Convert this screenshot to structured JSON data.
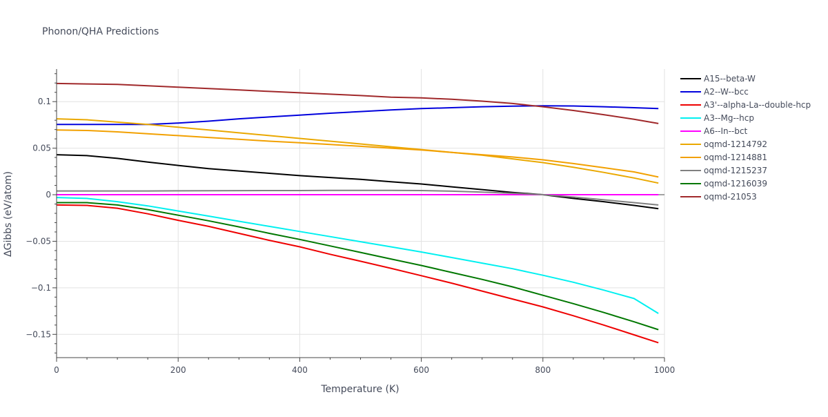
{
  "chart_data": {
    "type": "line",
    "title": "Phonon/QHA Predictions",
    "xlabel": "Temperature (K)",
    "ylabel": "ΔGibbs (eV/atom)",
    "xlim": [
      0,
      1000
    ],
    "ylim": [
      -0.175,
      0.135
    ],
    "xticks": [
      0,
      200,
      400,
      600,
      800,
      1000
    ],
    "xtick_labels": [
      "0",
      "200",
      "400",
      "600",
      "800",
      "1000"
    ],
    "yticks": [
      -0.15,
      -0.1,
      -0.05,
      0,
      0.05,
      0.1
    ],
    "ytick_labels": [
      "−0.15",
      "−0.1",
      "−0.05",
      "0",
      "0.05",
      "0.1"
    ],
    "grid": true,
    "legend_position": "right",
    "series": [
      {
        "name": "A15--beta-W",
        "color": "#000000",
        "x": [
          0,
          50,
          100,
          150,
          200,
          250,
          300,
          350,
          400,
          450,
          500,
          550,
          600,
          650,
          700,
          750,
          800,
          850,
          900,
          950,
          990
        ],
        "y": [
          0.043,
          0.042,
          0.039,
          0.035,
          0.0315,
          0.028,
          0.0255,
          0.023,
          0.0205,
          0.0185,
          0.0165,
          0.014,
          0.0115,
          0.0085,
          0.0055,
          0.0025,
          0.0,
          -0.004,
          -0.0075,
          -0.0115,
          -0.015
        ]
      },
      {
        "name": "A2--W--bcc",
        "color": "#0000dd",
        "x": [
          0,
          50,
          100,
          150,
          200,
          250,
          300,
          350,
          400,
          450,
          500,
          550,
          600,
          650,
          700,
          750,
          800,
          850,
          900,
          950,
          990
        ],
        "y": [
          0.0755,
          0.0755,
          0.0755,
          0.0755,
          0.077,
          0.079,
          0.0815,
          0.0835,
          0.0855,
          0.0875,
          0.0893,
          0.091,
          0.0925,
          0.0935,
          0.0945,
          0.0952,
          0.0955,
          0.0953,
          0.0945,
          0.0935,
          0.0925
        ]
      },
      {
        "name": "A3'--alpha-La--double-hcp",
        "color": "#ee0000",
        "x": [
          0,
          50,
          100,
          150,
          200,
          250,
          300,
          350,
          400,
          450,
          500,
          550,
          600,
          650,
          700,
          750,
          800,
          850,
          900,
          950,
          990
        ],
        "y": [
          -0.011,
          -0.0115,
          -0.0145,
          -0.0205,
          -0.0275,
          -0.034,
          -0.0415,
          -0.049,
          -0.056,
          -0.064,
          -0.0715,
          -0.079,
          -0.087,
          -0.095,
          -0.1035,
          -0.112,
          -0.1205,
          -0.13,
          -0.14,
          -0.1505,
          -0.159
        ]
      },
      {
        "name": "A3--Mg--hcp",
        "color": "#00f0f0",
        "x": [
          0,
          50,
          100,
          150,
          200,
          250,
          300,
          350,
          400,
          450,
          500,
          550,
          600,
          650,
          700,
          750,
          800,
          850,
          900,
          950,
          990
        ],
        "y": [
          -0.003,
          -0.004,
          -0.0075,
          -0.012,
          -0.0175,
          -0.023,
          -0.0285,
          -0.034,
          -0.0395,
          -0.045,
          -0.0505,
          -0.056,
          -0.0615,
          -0.0675,
          -0.0735,
          -0.0795,
          -0.0865,
          -0.094,
          -0.1025,
          -0.1115,
          -0.1275
        ]
      },
      {
        "name": "A6--In--bct",
        "color": "#ff00ff",
        "x": [
          0,
          990
        ],
        "y": [
          0.0,
          0.0
        ]
      },
      {
        "name": "oqmd-1214792",
        "color": "#eaa800",
        "x": [
          0,
          50,
          100,
          150,
          200,
          250,
          300,
          350,
          400,
          450,
          500,
          550,
          600,
          650,
          700,
          750,
          800,
          850,
          900,
          950,
          990
        ],
        "y": [
          0.0815,
          0.0805,
          0.078,
          0.0755,
          0.0725,
          0.0695,
          0.0665,
          0.0635,
          0.0605,
          0.0575,
          0.0545,
          0.0515,
          0.0485,
          0.0455,
          0.0425,
          0.0385,
          0.0345,
          0.0295,
          0.024,
          0.018,
          0.0125
        ]
      },
      {
        "name": "oqmd-1214881",
        "color": "#f2a000",
        "x": [
          0,
          50,
          100,
          150,
          200,
          250,
          300,
          350,
          400,
          450,
          500,
          550,
          600,
          650,
          700,
          750,
          800,
          850,
          900,
          950,
          990
        ],
        "y": [
          0.0695,
          0.069,
          0.0675,
          0.0655,
          0.0635,
          0.0615,
          0.0595,
          0.0575,
          0.0558,
          0.054,
          0.052,
          0.05,
          0.048,
          0.0455,
          0.043,
          0.0405,
          0.0375,
          0.0335,
          0.029,
          0.0245,
          0.019
        ]
      },
      {
        "name": "oqmd-1215237",
        "color": "#808080",
        "x": [
          0,
          50,
          100,
          150,
          200,
          250,
          300,
          350,
          400,
          450,
          500,
          550,
          600,
          650,
          700,
          750,
          800,
          850,
          900,
          950,
          990
        ],
        "y": [
          0.004,
          0.004,
          0.004,
          0.004,
          0.0042,
          0.0043,
          0.0044,
          0.0045,
          0.0045,
          0.0046,
          0.0047,
          0.0047,
          0.0045,
          0.0038,
          0.0028,
          0.0015,
          0.0,
          -0.0025,
          -0.0055,
          -0.0085,
          -0.011
        ]
      },
      {
        "name": "oqmd-1216039",
        "color": "#007700",
        "x": [
          0,
          50,
          100,
          150,
          200,
          250,
          300,
          350,
          400,
          450,
          500,
          550,
          600,
          650,
          700,
          750,
          800,
          850,
          900,
          950,
          990
        ],
        "y": [
          -0.0085,
          -0.0085,
          -0.011,
          -0.016,
          -0.022,
          -0.028,
          -0.0345,
          -0.0415,
          -0.048,
          -0.055,
          -0.062,
          -0.069,
          -0.076,
          -0.0835,
          -0.091,
          -0.099,
          -0.108,
          -0.117,
          -0.1265,
          -0.1365,
          -0.145
        ]
      },
      {
        "name": "oqmd-21053",
        "color": "#a0282a",
        "x": [
          0,
          50,
          100,
          150,
          200,
          250,
          300,
          350,
          400,
          450,
          500,
          550,
          600,
          650,
          700,
          750,
          800,
          850,
          900,
          950,
          990
        ],
        "y": [
          0.1195,
          0.119,
          0.1185,
          0.117,
          0.1155,
          0.114,
          0.1125,
          0.111,
          0.1095,
          0.108,
          0.1065,
          0.1048,
          0.104,
          0.1025,
          0.1005,
          0.098,
          0.0945,
          0.0905,
          0.086,
          0.081,
          0.0765
        ]
      }
    ]
  }
}
